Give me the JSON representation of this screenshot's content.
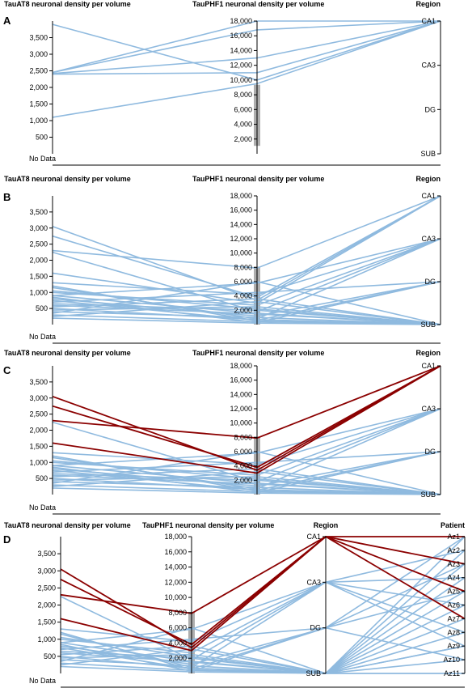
{
  "chart_data": [
    {
      "panel": "A",
      "type": "parallel-coordinates",
      "axes": [
        {
          "name": "TauAT8 neuronal density per volume",
          "kind": "numeric",
          "ticks": [
            500,
            1000,
            1500,
            2000,
            2500,
            3000,
            3500
          ],
          "tick_labels": [
            "500",
            "1,000",
            "1,500",
            "2,000",
            "2,500",
            "3,000",
            "3,500"
          ],
          "extra_label": "No Data"
        },
        {
          "name": "TauPHF1 neuronal density per volume",
          "kind": "numeric",
          "ticks": [
            2000,
            4000,
            6000,
            8000,
            10000,
            12000,
            14000,
            16000,
            18000
          ],
          "tick_labels": [
            "2,000",
            "4,000",
            "6,000",
            "8,000",
            "10,000",
            "12,000",
            "14,000",
            "16,000",
            "18,000"
          ]
        },
        {
          "name": "Region",
          "kind": "categorical",
          "categories": [
            "CA1",
            "CA3",
            "DG",
            "SUB"
          ]
        }
      ],
      "lines": [
        {
          "values": [
            3900,
            10000,
            "CA1"
          ],
          "highlight": false
        },
        {
          "values": [
            2450,
            18000,
            "CA1"
          ],
          "highlight": false
        },
        {
          "values": [
            2450,
            16800,
            "CA1"
          ],
          "highlight": false
        },
        {
          "values": [
            2420,
            13000,
            "CA1"
          ],
          "highlight": false
        },
        {
          "values": [
            2400,
            11000,
            "CA1"
          ],
          "highlight": false
        },
        {
          "values": [
            1100,
            9500,
            "CA1"
          ],
          "highlight": false
        }
      ]
    },
    {
      "panel": "B",
      "type": "parallel-coordinates",
      "axes": [
        {
          "name": "TauAT8 neuronal density per volume",
          "kind": "numeric",
          "ticks": [
            500,
            1000,
            1500,
            2000,
            2500,
            3000,
            3500
          ],
          "tick_labels": [
            "500",
            "1,000",
            "1,500",
            "2,000",
            "2,500",
            "3,000",
            "3,500"
          ],
          "extra_label": "No Data"
        },
        {
          "name": "TauPHF1 neuronal density per volume",
          "kind": "numeric",
          "ticks": [
            2000,
            4000,
            6000,
            8000,
            10000,
            12000,
            14000,
            16000,
            18000
          ],
          "tick_labels": [
            "2,000",
            "4,000",
            "6,000",
            "8,000",
            "10,000",
            "12,000",
            "14,000",
            "16,000",
            "18,000"
          ]
        },
        {
          "name": "Region",
          "kind": "categorical",
          "categories": [
            "CA1",
            "CA3",
            "DG",
            "SUB"
          ]
        }
      ],
      "lines": [
        {
          "values": [
            3050,
            3400,
            "CA1"
          ],
          "highlight": false
        },
        {
          "values": [
            2750,
            3800,
            "CA1"
          ],
          "highlight": false
        },
        {
          "values": [
            2300,
            7900,
            "CA1"
          ],
          "highlight": false
        },
        {
          "values": [
            1600,
            3000,
            "CA1"
          ],
          "highlight": false
        },
        {
          "values": [
            2250,
            1800,
            "CA3"
          ],
          "highlight": false
        },
        {
          "values": [
            1300,
            4200,
            "CA3"
          ],
          "highlight": false
        },
        {
          "values": [
            1150,
            800,
            "CA3"
          ],
          "highlight": false
        },
        {
          "values": [
            1000,
            2700,
            "CA3"
          ],
          "highlight": false
        },
        {
          "values": [
            900,
            5800,
            "CA3"
          ],
          "highlight": false
        },
        {
          "values": [
            850,
            300,
            "DG"
          ],
          "highlight": false
        },
        {
          "values": [
            800,
            1200,
            "DG"
          ],
          "highlight": false
        },
        {
          "values": [
            750,
            600,
            "DG"
          ],
          "highlight": false
        },
        {
          "values": [
            700,
            4500,
            "DG"
          ],
          "highlight": false
        },
        {
          "values": [
            650,
            2000,
            "SUB"
          ],
          "highlight": false
        },
        {
          "values": [
            600,
            1500,
            "SUB"
          ],
          "highlight": false
        },
        {
          "values": [
            550,
            3600,
            "SUB"
          ],
          "highlight": false
        },
        {
          "values": [
            500,
            700,
            "SUB"
          ],
          "highlight": false
        },
        {
          "values": [
            450,
            2500,
            "SUB"
          ],
          "highlight": false
        },
        {
          "values": [
            400,
            1000,
            "SUB"
          ],
          "highlight": false
        },
        {
          "values": [
            350,
            6000,
            "SUB"
          ],
          "highlight": false
        },
        {
          "values": [
            300,
            400,
            "SUB"
          ],
          "highlight": false
        },
        {
          "values": [
            250,
            3200,
            "SUB"
          ],
          "highlight": false
        },
        {
          "values": [
            200,
            200,
            "SUB"
          ],
          "highlight": false
        },
        {
          "values": [
            900,
            1600,
            "SUB"
          ],
          "highlight": false
        },
        {
          "values": [
            1050,
            2200,
            "SUB"
          ],
          "highlight": false
        },
        {
          "values": [
            1200,
            500,
            "SUB"
          ],
          "highlight": false
        }
      ]
    },
    {
      "panel": "C",
      "type": "parallel-coordinates",
      "axes": [
        {
          "name": "TauAT8 neuronal density per volume",
          "kind": "numeric",
          "ticks": [
            500,
            1000,
            1500,
            2000,
            2500,
            3000,
            3500
          ],
          "tick_labels": [
            "500",
            "1,000",
            "1,500",
            "2,000",
            "2,500",
            "3,000",
            "3,500"
          ],
          "extra_label": "No Data"
        },
        {
          "name": "TauPHF1 neuronal density per volume",
          "kind": "numeric",
          "ticks": [
            2000,
            4000,
            6000,
            8000,
            10000,
            12000,
            14000,
            16000,
            18000
          ],
          "tick_labels": [
            "2,000",
            "4,000",
            "6,000",
            "8,000",
            "10,000",
            "12,000",
            "14,000",
            "16,000",
            "18,000"
          ]
        },
        {
          "name": "Region",
          "kind": "categorical",
          "categories": [
            "CA1",
            "CA3",
            "DG",
            "SUB"
          ]
        }
      ],
      "lines": [
        {
          "values": [
            3050,
            3400,
            "CA1"
          ],
          "highlight": true
        },
        {
          "values": [
            2750,
            3800,
            "CA1"
          ],
          "highlight": true
        },
        {
          "values": [
            2300,
            7900,
            "CA1"
          ],
          "highlight": true
        },
        {
          "values": [
            1600,
            3000,
            "CA1"
          ],
          "highlight": true
        },
        {
          "values": [
            2250,
            1800,
            "CA3"
          ],
          "highlight": false
        },
        {
          "values": [
            1300,
            4200,
            "CA3"
          ],
          "highlight": false
        },
        {
          "values": [
            1150,
            800,
            "CA3"
          ],
          "highlight": false
        },
        {
          "values": [
            1000,
            2700,
            "CA3"
          ],
          "highlight": false
        },
        {
          "values": [
            900,
            5800,
            "CA3"
          ],
          "highlight": false
        },
        {
          "values": [
            850,
            300,
            "DG"
          ],
          "highlight": false
        },
        {
          "values": [
            800,
            1200,
            "DG"
          ],
          "highlight": false
        },
        {
          "values": [
            750,
            600,
            "DG"
          ],
          "highlight": false
        },
        {
          "values": [
            700,
            4500,
            "DG"
          ],
          "highlight": false
        },
        {
          "values": [
            650,
            2000,
            "SUB"
          ],
          "highlight": false
        },
        {
          "values": [
            600,
            1500,
            "SUB"
          ],
          "highlight": false
        },
        {
          "values": [
            550,
            3600,
            "SUB"
          ],
          "highlight": false
        },
        {
          "values": [
            500,
            700,
            "SUB"
          ],
          "highlight": false
        },
        {
          "values": [
            450,
            2500,
            "SUB"
          ],
          "highlight": false
        },
        {
          "values": [
            400,
            1000,
            "SUB"
          ],
          "highlight": false
        },
        {
          "values": [
            350,
            6000,
            "SUB"
          ],
          "highlight": false
        },
        {
          "values": [
            300,
            400,
            "SUB"
          ],
          "highlight": false
        },
        {
          "values": [
            250,
            3200,
            "SUB"
          ],
          "highlight": false
        },
        {
          "values": [
            200,
            200,
            "SUB"
          ],
          "highlight": false
        },
        {
          "values": [
            900,
            1600,
            "SUB"
          ],
          "highlight": false
        },
        {
          "values": [
            1050,
            2200,
            "SUB"
          ],
          "highlight": false
        },
        {
          "values": [
            1200,
            500,
            "SUB"
          ],
          "highlight": false
        }
      ]
    },
    {
      "panel": "D",
      "type": "parallel-coordinates",
      "axes": [
        {
          "name": "TauAT8 neuronal density per volume",
          "kind": "numeric",
          "ticks": [
            500,
            1000,
            1500,
            2000,
            2500,
            3000,
            3500
          ],
          "tick_labels": [
            "500",
            "1,000",
            "1,500",
            "2,000",
            "2,500",
            "3,000",
            "3,500"
          ],
          "extra_label": "No Data"
        },
        {
          "name": "TauPHF1 neuronal density per volume",
          "kind": "numeric",
          "ticks": [
            2000,
            4000,
            6000,
            8000,
            10000,
            12000,
            14000,
            16000,
            18000
          ],
          "tick_labels": [
            "2,000",
            "4,000",
            "6,000",
            "8,000",
            "10,000",
            "12,000",
            "14,000",
            "16,000",
            "18,000"
          ]
        },
        {
          "name": "Region",
          "kind": "categorical",
          "categories": [
            "CA1",
            "CA3",
            "DG",
            "SUB"
          ]
        },
        {
          "name": "Patient",
          "kind": "categorical",
          "categories": [
            "Az1",
            "Az2",
            "Az3",
            "Az4",
            "Az5",
            "Az6",
            "Az7",
            "Az8",
            "Az9",
            "Az10",
            "Az11"
          ]
        }
      ],
      "lines": [
        {
          "values": [
            3050,
            3400,
            "CA1",
            "Az1"
          ],
          "highlight": true
        },
        {
          "values": [
            2750,
            3800,
            "CA1",
            "Az3"
          ],
          "highlight": true
        },
        {
          "values": [
            2300,
            7900,
            "CA1",
            "Az5"
          ],
          "highlight": true
        },
        {
          "values": [
            1600,
            3000,
            "CA1",
            "Az7"
          ],
          "highlight": true
        },
        {
          "values": [
            2250,
            1800,
            "CA3",
            "Az2"
          ],
          "highlight": false
        },
        {
          "values": [
            1300,
            4200,
            "CA3",
            "Az4"
          ],
          "highlight": false
        },
        {
          "values": [
            1150,
            800,
            "CA3",
            "Az6"
          ],
          "highlight": false
        },
        {
          "values": [
            1000,
            2700,
            "CA3",
            "Az8"
          ],
          "highlight": false
        },
        {
          "values": [
            900,
            5800,
            "CA3",
            "Az9"
          ],
          "highlight": false
        },
        {
          "values": [
            850,
            300,
            "DG",
            "Az1"
          ],
          "highlight": false
        },
        {
          "values": [
            800,
            1200,
            "DG",
            "Az3"
          ],
          "highlight": false
        },
        {
          "values": [
            750,
            600,
            "DG",
            "Az5"
          ],
          "highlight": false
        },
        {
          "values": [
            700,
            4500,
            "DG",
            "Az10"
          ],
          "highlight": false
        },
        {
          "values": [
            650,
            2000,
            "SUB",
            "Az2"
          ],
          "highlight": false
        },
        {
          "values": [
            600,
            1500,
            "SUB",
            "Az4"
          ],
          "highlight": false
        },
        {
          "values": [
            550,
            3600,
            "SUB",
            "Az6"
          ],
          "highlight": false
        },
        {
          "values": [
            500,
            700,
            "SUB",
            "Az7"
          ],
          "highlight": false
        },
        {
          "values": [
            450,
            2500,
            "SUB",
            "Az8"
          ],
          "highlight": false
        },
        {
          "values": [
            400,
            1000,
            "SUB",
            "Az9"
          ],
          "highlight": false
        },
        {
          "values": [
            350,
            6000,
            "SUB",
            "Az10"
          ],
          "highlight": false
        },
        {
          "values": [
            300,
            400,
            "SUB",
            "Az11"
          ],
          "highlight": false
        },
        {
          "values": [
            250,
            3200,
            "SUB",
            "Az1"
          ],
          "highlight": false
        },
        {
          "values": [
            200,
            200,
            "SUB",
            "Az3"
          ],
          "highlight": false
        },
        {
          "values": [
            900,
            1600,
            "SUB",
            "Az11"
          ],
          "highlight": false
        },
        {
          "values": [
            1050,
            2200,
            "SUB",
            "Az5"
          ],
          "highlight": false
        },
        {
          "values": [
            1200,
            500,
            "SUB",
            "Az9"
          ],
          "highlight": false
        }
      ]
    }
  ],
  "colors": {
    "line": "#8fbadf",
    "highlight": "#8b0000",
    "brush": "#9a9a9a",
    "axis": "#000000"
  }
}
